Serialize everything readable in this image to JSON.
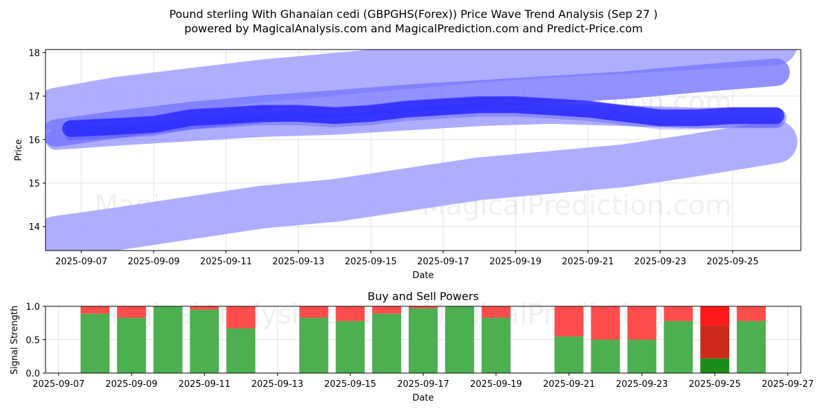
{
  "title_line1": "Pound sterling With Ghanaian cedi (GBPGHS(Forex)) Price Wave Trend Analysis (Sep 27 )",
  "title_line2": "powered by MagicalAnalysis.com and MagicalPrediction.com and Predict-Price.com",
  "watermark_left": "MagicalAnalysis.com",
  "watermark_right": "MagicalPrediction.com",
  "colors": {
    "band": "#aaaaff",
    "band_mid": "#7777ff",
    "wave": "#2a2aff",
    "buy": "#4caf50",
    "sell": "#ff4d4d",
    "buy_strong": "#1a8c1a",
    "sell_strong": "#ff1a1a",
    "sell_dark": "#cc2a1a"
  },
  "chart_data": [
    {
      "type": "line",
      "title": "",
      "xlabel": "Date",
      "ylabel": "Price",
      "ylim": [
        13.45,
        18.07
      ],
      "yticks": [
        14,
        15,
        16,
        17,
        18
      ],
      "xticks": [
        "2025-09-07",
        "2025-09-09",
        "2025-09-11",
        "2025-09-13",
        "2025-09-15",
        "2025-09-17",
        "2025-09-19",
        "2025-09-21",
        "2025-09-23",
        "2025-09-25"
      ],
      "grid": true,
      "series": [
        {
          "name": "upper-band",
          "x": [
            6.3,
            8,
            10,
            12,
            14,
            16,
            18,
            20,
            22,
            24,
            26.2
          ],
          "values": [
            16.7,
            16.95,
            17.15,
            17.35,
            17.5,
            17.65,
            17.8,
            17.92,
            18.0,
            18.1,
            18.2
          ]
        },
        {
          "name": "upper-mid-band",
          "x": [
            6.3,
            8,
            10,
            12,
            14,
            16,
            18,
            20,
            22,
            24,
            26.2
          ],
          "values": [
            16.15,
            16.35,
            16.55,
            16.7,
            16.82,
            16.95,
            17.05,
            17.15,
            17.25,
            17.4,
            17.55
          ]
        },
        {
          "name": "wave",
          "x": [
            6.7,
            8,
            9,
            10,
            11,
            12,
            13,
            14,
            15,
            16,
            17,
            18,
            19,
            20,
            21,
            22,
            23,
            24,
            25,
            26.2
          ],
          "values": [
            16.25,
            16.3,
            16.35,
            16.5,
            16.55,
            16.6,
            16.6,
            16.55,
            16.6,
            16.7,
            16.75,
            16.8,
            16.8,
            16.75,
            16.7,
            16.6,
            16.5,
            16.5,
            16.55,
            16.55
          ]
        },
        {
          "name": "lower-mid-band",
          "x": [
            6.3,
            8,
            10,
            12,
            14,
            16,
            18,
            20,
            22,
            24,
            26.2
          ],
          "values": [
            16.0,
            16.1,
            16.2,
            16.3,
            16.35,
            16.45,
            16.55,
            16.6,
            16.55,
            16.5,
            16.5
          ]
        },
        {
          "name": "lower-band",
          "x": [
            6.3,
            8,
            10,
            12,
            14,
            16,
            18,
            20,
            22,
            24,
            26.2
          ],
          "values": [
            13.75,
            13.95,
            14.2,
            14.45,
            14.6,
            14.85,
            15.1,
            15.25,
            15.4,
            15.65,
            15.95
          ]
        }
      ]
    },
    {
      "type": "bar",
      "title": "Buy and Sell Powers",
      "xlabel": "Date",
      "ylabel": "Signal Strength",
      "ylim": [
        0,
        1
      ],
      "yticks": [
        "0.0",
        "0.5",
        "1.0"
      ],
      "xticks": [
        "2025-09-07",
        "2025-09-09",
        "2025-09-11",
        "2025-09-13",
        "2025-09-15",
        "2025-09-17",
        "2025-09-19",
        "2025-09-21",
        "2025-09-23",
        "2025-09-25",
        "2025-09-27"
      ],
      "categories": [
        "2025-09-08",
        "2025-09-09",
        "2025-09-10",
        "2025-09-11",
        "2025-09-12",
        "2025-09-14",
        "2025-09-15",
        "2025-09-16",
        "2025-09-17",
        "2025-09-18",
        "2025-09-19",
        "2025-09-21",
        "2025-09-22",
        "2025-09-23",
        "2025-09-24",
        "2025-09-25",
        "2025-09-26"
      ],
      "day_index": [
        8,
        9,
        10,
        11,
        12,
        14,
        15,
        16,
        17,
        18,
        19,
        21,
        22,
        23,
        24,
        25,
        26
      ],
      "series": [
        {
          "name": "buy",
          "values": [
            0.89,
            0.83,
            1.0,
            0.95,
            0.67,
            0.83,
            0.78,
            0.89,
            0.97,
            1.0,
            0.83,
            0.55,
            0.5,
            0.5,
            0.78,
            0.22,
            0.78
          ]
        },
        {
          "name": "sell",
          "values": [
            0.11,
            0.17,
            0.0,
            0.05,
            0.33,
            0.17,
            0.22,
            0.11,
            0.03,
            0.0,
            0.17,
            0.45,
            0.5,
            0.5,
            0.22,
            0.78,
            0.22
          ]
        }
      ],
      "special": {
        "index": 15,
        "segments": [
          {
            "from": 0,
            "to": 0.22,
            "color": "buy_strong"
          },
          {
            "from": 0.22,
            "to": 0.72,
            "color": "sell_dark"
          },
          {
            "from": 0.72,
            "to": 1.0,
            "color": "sell_strong"
          }
        ]
      }
    }
  ]
}
